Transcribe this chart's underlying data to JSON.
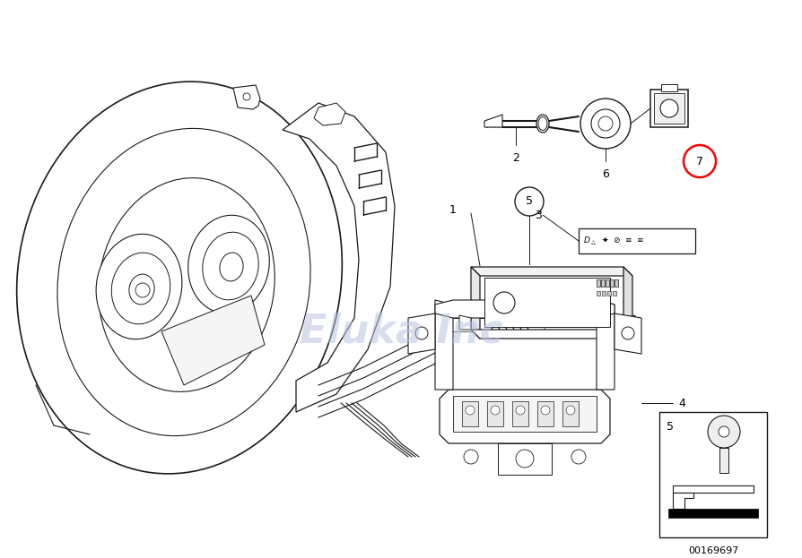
{
  "bg_color": "#ffffff",
  "watermark_text": "Eluka Inc",
  "watermark_color": "#b8c4e0",
  "watermark_alpha": 0.55,
  "catalog_number": "00169697",
  "line_color": "#1a1a1a",
  "light_gray": "#cccccc",
  "mid_gray": "#888888"
}
